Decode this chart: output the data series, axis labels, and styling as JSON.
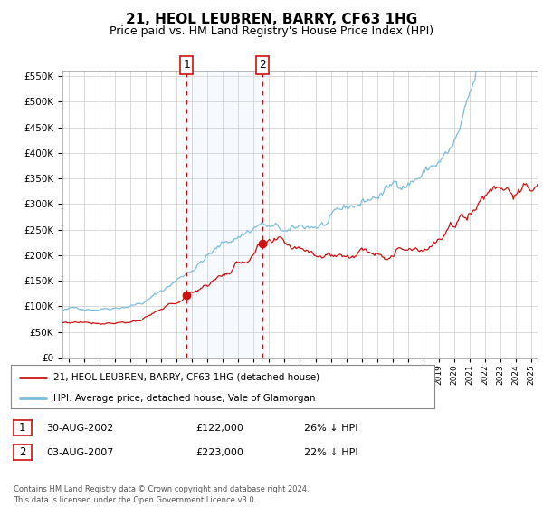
{
  "title": "21, HEOL LEUBREN, BARRY, CF63 1HG",
  "subtitle": "Price paid vs. HM Land Registry's House Price Index (HPI)",
  "ylim": [
    0,
    560000
  ],
  "yticks": [
    0,
    50000,
    100000,
    150000,
    200000,
    250000,
    300000,
    350000,
    400000,
    450000,
    500000,
    550000
  ],
  "ytick_labels": [
    "£0",
    "£50K",
    "£100K",
    "£150K",
    "£200K",
    "£250K",
    "£300K",
    "£350K",
    "£400K",
    "£450K",
    "£500K",
    "£550K"
  ],
  "xlim_start": 1994.6,
  "xlim_end": 2025.4,
  "hpi_color": "#7bbde0",
  "price_color": "#cc1111",
  "sale1_date": 2002.66,
  "sale1_price": 122000,
  "sale1_label": "1",
  "sale2_date": 2007.59,
  "sale2_price": 223000,
  "sale2_label": "2",
  "shade_color": "#ddeeff",
  "grid_color": "#cccccc",
  "legend_label_price": "21, HEOL LEUBREN, BARRY, CF63 1HG (detached house)",
  "legend_label_hpi": "HPI: Average price, detached house, Vale of Glamorgan",
  "table_row1": [
    "1",
    "30-AUG-2002",
    "£122,000",
    "26% ↓ HPI"
  ],
  "table_row2": [
    "2",
    "03-AUG-2007",
    "£223,000",
    "22% ↓ HPI"
  ],
  "footer": "Contains HM Land Registry data © Crown copyright and database right 2024.\nThis data is licensed under the Open Government Licence v3.0.",
  "title_fontsize": 11,
  "subtitle_fontsize": 9,
  "background_color": "#ffffff"
}
